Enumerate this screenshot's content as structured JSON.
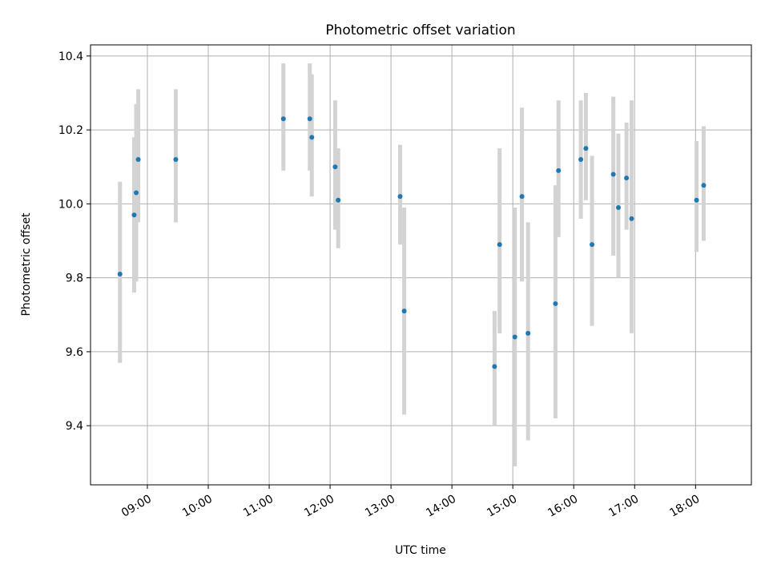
{
  "chart_data": {
    "type": "scatter",
    "title": "Photometric offset variation",
    "xlabel": "UTC time",
    "ylabel": "Photometric offset",
    "xlim": [
      "08:04",
      "18:55"
    ],
    "ylim": [
      9.24,
      10.43
    ],
    "x_ticks": [
      "09:00",
      "10:00",
      "11:00",
      "12:00",
      "13:00",
      "14:00",
      "15:00",
      "16:00",
      "17:00",
      "18:00"
    ],
    "y_ticks": [
      9.4,
      9.6,
      9.8,
      10.0,
      10.2,
      10.4
    ],
    "y_tick_labels": [
      "9.4",
      "9.6",
      "9.8",
      "10.0",
      "10.2",
      "10.4"
    ],
    "grid": true,
    "colors": {
      "point": "#1f77b4",
      "errorbar": "#d3d3d3"
    },
    "series": [
      {
        "points": [
          {
            "x": "08:33",
            "y": 9.81,
            "ylow": 9.57,
            "yhigh": 10.06
          },
          {
            "x": "08:47",
            "y": 9.97,
            "ylow": 9.76,
            "yhigh": 10.18
          },
          {
            "x": "08:49",
            "y": 10.03,
            "ylow": 9.79,
            "yhigh": 10.27
          },
          {
            "x": "08:51",
            "y": 10.12,
            "ylow": 9.95,
            "yhigh": 10.31
          },
          {
            "x": "09:28",
            "y": 10.12,
            "ylow": 9.95,
            "yhigh": 10.31
          },
          {
            "x": "11:14",
            "y": 10.23,
            "ylow": 10.09,
            "yhigh": 10.38
          },
          {
            "x": "11:40",
            "y": 10.23,
            "ylow": 10.09,
            "yhigh": 10.38
          },
          {
            "x": "11:42",
            "y": 10.18,
            "ylow": 10.02,
            "yhigh": 10.35
          },
          {
            "x": "12:05",
            "y": 10.1,
            "ylow": 9.93,
            "yhigh": 10.28
          },
          {
            "x": "12:08",
            "y": 10.01,
            "ylow": 9.88,
            "yhigh": 10.15
          },
          {
            "x": "13:09",
            "y": 10.02,
            "ylow": 9.89,
            "yhigh": 10.16
          },
          {
            "x": "13:13",
            "y": 9.71,
            "ylow": 9.43,
            "yhigh": 9.99
          },
          {
            "x": "14:42",
            "y": 9.56,
            "ylow": 9.4,
            "yhigh": 9.71
          },
          {
            "x": "14:47",
            "y": 9.89,
            "ylow": 9.65,
            "yhigh": 10.15
          },
          {
            "x": "15:02",
            "y": 9.64,
            "ylow": 9.29,
            "yhigh": 9.99
          },
          {
            "x": "15:09",
            "y": 10.02,
            "ylow": 9.79,
            "yhigh": 10.26
          },
          {
            "x": "15:15",
            "y": 9.65,
            "ylow": 9.36,
            "yhigh": 9.95
          },
          {
            "x": "15:42",
            "y": 9.73,
            "ylow": 9.42,
            "yhigh": 10.05
          },
          {
            "x": "15:45",
            "y": 10.09,
            "ylow": 9.91,
            "yhigh": 10.28
          },
          {
            "x": "16:07",
            "y": 10.12,
            "ylow": 9.96,
            "yhigh": 10.28
          },
          {
            "x": "16:12",
            "y": 10.15,
            "ylow": 10.01,
            "yhigh": 10.3
          },
          {
            "x": "16:18",
            "y": 9.89,
            "ylow": 9.67,
            "yhigh": 10.13
          },
          {
            "x": "16:39",
            "y": 10.08,
            "ylow": 9.86,
            "yhigh": 10.29
          },
          {
            "x": "16:44",
            "y": 9.99,
            "ylow": 9.8,
            "yhigh": 10.19
          },
          {
            "x": "16:52",
            "y": 10.07,
            "ylow": 9.93,
            "yhigh": 10.22
          },
          {
            "x": "16:57",
            "y": 9.96,
            "ylow": 9.65,
            "yhigh": 10.28
          },
          {
            "x": "18:01",
            "y": 10.01,
            "ylow": 9.87,
            "yhigh": 10.17
          },
          {
            "x": "18:08",
            "y": 10.05,
            "ylow": 9.9,
            "yhigh": 10.21
          }
        ]
      }
    ]
  }
}
